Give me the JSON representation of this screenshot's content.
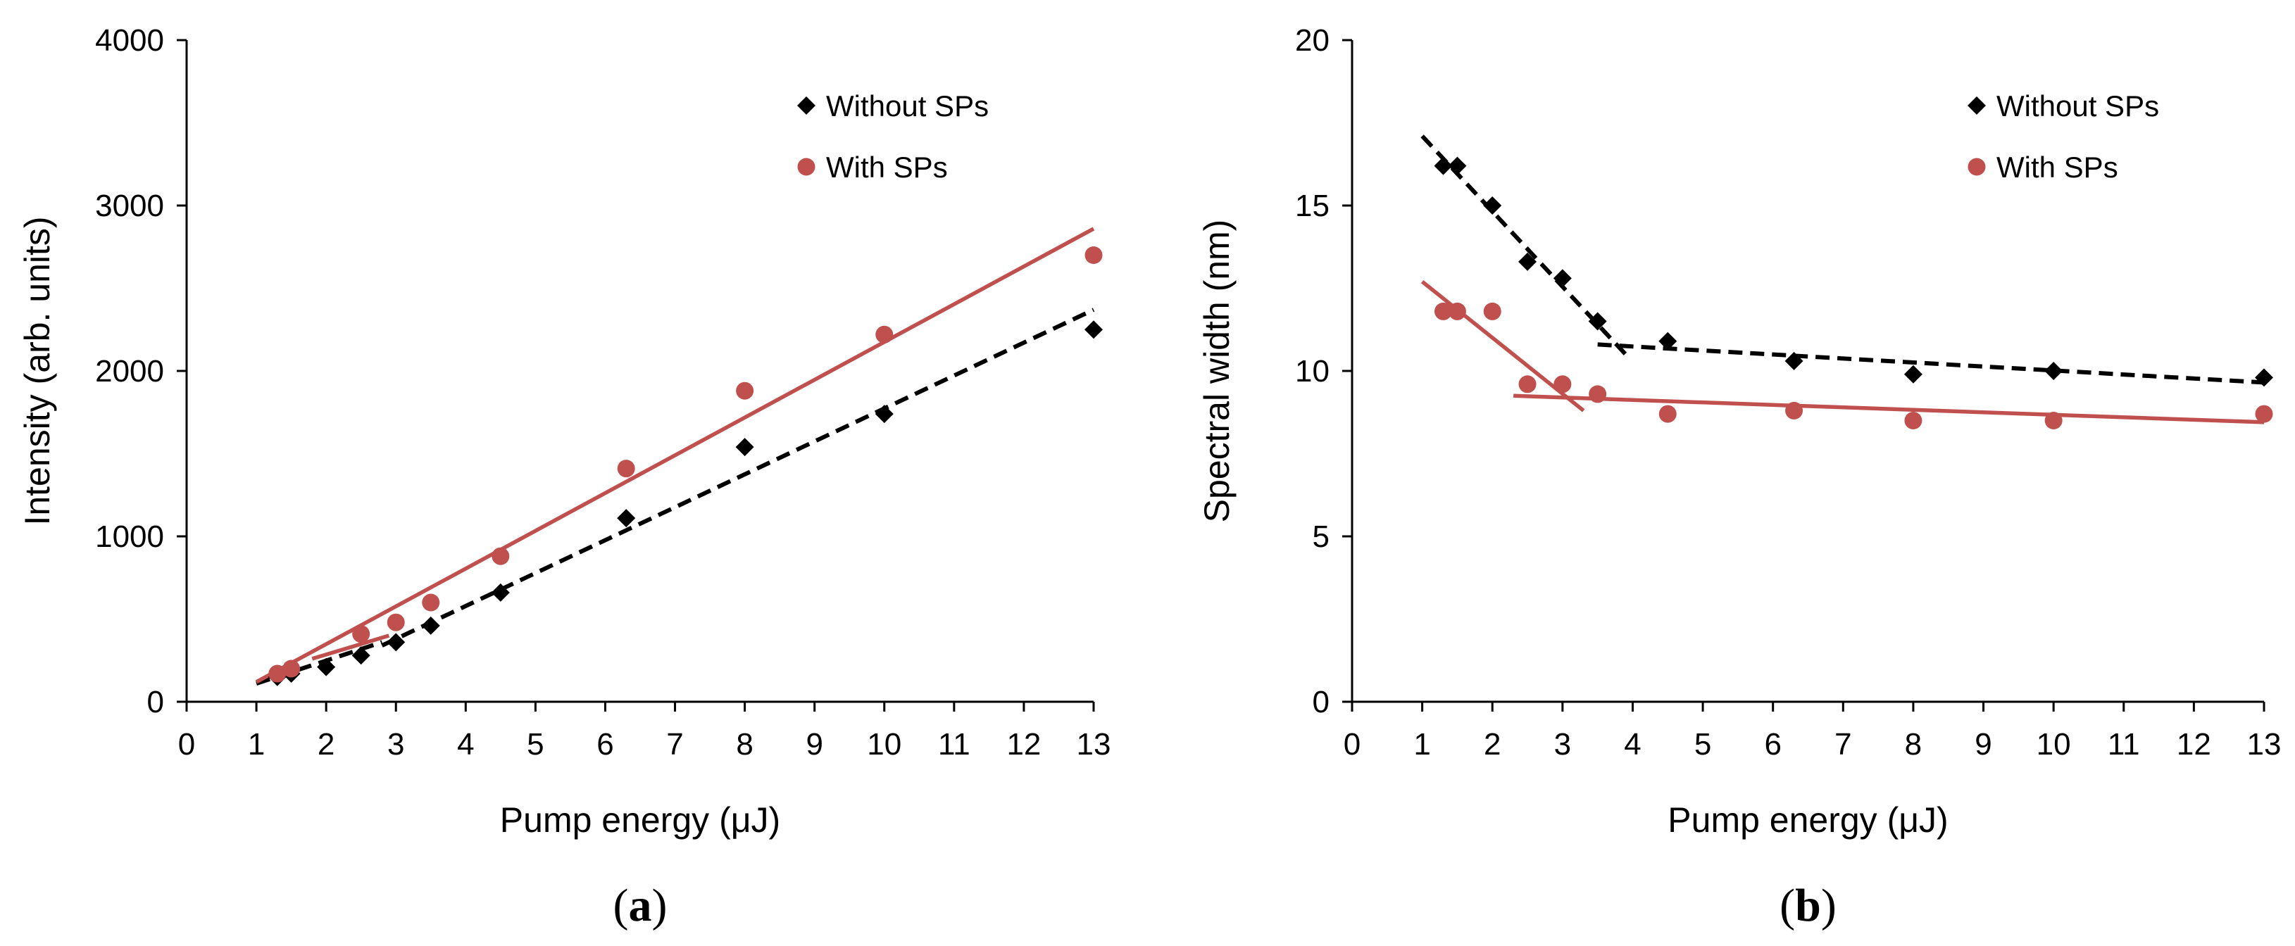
{
  "chart_data": [
    {
      "type": "scatter",
      "panel_label": "a",
      "xlabel": "Pump energy (μJ)",
      "ylabel": "Intensity (arb. units)",
      "xlim": [
        0,
        13
      ],
      "ylim": [
        0,
        4000
      ],
      "xticks": [
        0,
        1,
        2,
        3,
        4,
        5,
        6,
        7,
        8,
        9,
        10,
        11,
        12,
        13
      ],
      "yticks": [
        0,
        1000,
        2000,
        3000,
        4000
      ],
      "grid": false,
      "legend_placement": "top-right",
      "series": [
        {
          "name": "Without SPs",
          "marker": "diamond",
          "color": "#000000",
          "x": [
            1.3,
            1.5,
            2,
            2.5,
            3,
            3.5,
            4.5,
            6.3,
            8,
            10,
            13
          ],
          "y": [
            150,
            170,
            210,
            280,
            360,
            460,
            660,
            1110,
            1540,
            1740,
            2250
          ]
        },
        {
          "name": "With SPs",
          "marker": "circle",
          "color": "#c0504d",
          "x": [
            1.3,
            1.5,
            2.5,
            3,
            3.5,
            4.5,
            6.3,
            8,
            10,
            13
          ],
          "y": [
            170,
            200,
            410,
            480,
            600,
            880,
            1410,
            1880,
            2220,
            2700
          ]
        }
      ],
      "fits": [
        {
          "color": "#000000",
          "style": "dashed",
          "x": [
            1,
            2.8
          ],
          "y": [
            110,
            360
          ]
        },
        {
          "color": "#000000",
          "style": "dashed",
          "x": [
            2.8,
            13
          ],
          "y": [
            340,
            2370
          ]
        },
        {
          "color": "#c0504d",
          "style": "solid",
          "x": [
            1,
            13
          ],
          "y": [
            120,
            2860
          ]
        },
        {
          "color": "#c0504d",
          "style": "solid",
          "x": [
            1.8,
            2.9
          ],
          "y": [
            260,
            400
          ]
        }
      ]
    },
    {
      "type": "scatter",
      "panel_label": "b",
      "xlabel": "Pump energy (μJ)",
      "ylabel": "Spectral width (nm)",
      "xlim": [
        0,
        13
      ],
      "ylim": [
        0,
        20
      ],
      "xticks": [
        0,
        1,
        2,
        3,
        4,
        5,
        6,
        7,
        8,
        9,
        10,
        11,
        12,
        13
      ],
      "yticks": [
        0,
        5,
        10,
        15,
        20
      ],
      "grid": false,
      "legend_placement": "top-right",
      "series": [
        {
          "name": "Without SPs",
          "marker": "diamond",
          "color": "#000000",
          "x": [
            1.3,
            1.5,
            2,
            2.5,
            3,
            3.5,
            4.5,
            6.3,
            8,
            10,
            13
          ],
          "y": [
            16.2,
            16.2,
            15.0,
            13.3,
            12.8,
            11.5,
            10.9,
            10.3,
            9.9,
            10.0,
            9.8
          ]
        },
        {
          "name": "With SPs",
          "marker": "circle",
          "color": "#c0504d",
          "x": [
            1.3,
            1.5,
            2,
            2.5,
            3,
            3.5,
            4.5,
            6.3,
            8,
            10,
            13
          ],
          "y": [
            11.8,
            11.8,
            11.8,
            9.6,
            9.6,
            9.3,
            8.7,
            8.8,
            8.5,
            8.5,
            8.7
          ]
        }
      ],
      "fits": [
        {
          "color": "#000000",
          "style": "dashed",
          "x": [
            1,
            3.9
          ],
          "y": [
            17.1,
            10.5
          ]
        },
        {
          "color": "#000000",
          "style": "dashed",
          "x": [
            3.5,
            13
          ],
          "y": [
            10.8,
            9.65
          ]
        },
        {
          "color": "#c0504d",
          "style": "solid",
          "x": [
            1,
            3.3
          ],
          "y": [
            12.7,
            8.8
          ]
        },
        {
          "color": "#c0504d",
          "style": "solid",
          "x": [
            2.3,
            13
          ],
          "y": [
            9.25,
            8.45
          ]
        }
      ]
    }
  ]
}
